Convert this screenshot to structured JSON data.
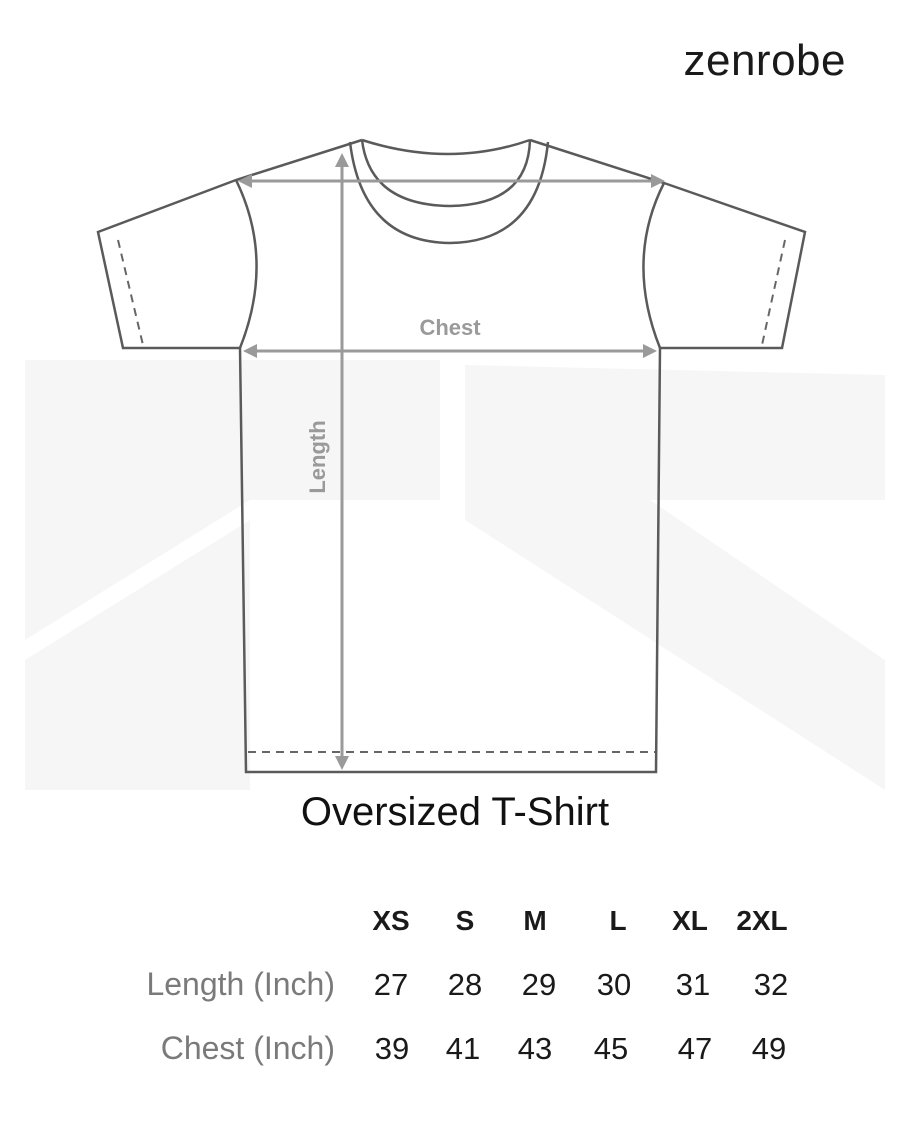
{
  "brand": "zenrobe",
  "diagram": {
    "chest_label": "Chest",
    "length_label": "Length"
  },
  "title": "Oversized T-Shirt",
  "size_table": {
    "sizes": [
      "XS",
      "S",
      "M",
      "L",
      "XL",
      "2XL"
    ],
    "rows": [
      {
        "label": "Length (Inch)",
        "values": [
          "27",
          "28",
          "29",
          "30",
          "31",
          "32"
        ]
      },
      {
        "label": "Chest (Inch)",
        "values": [
          "39",
          "41",
          "43",
          "45",
          "47",
          "49"
        ]
      }
    ]
  },
  "colors": {
    "outline": "#5a5a5a",
    "measure": "#9a9a9a",
    "label": "#7a7a7a"
  }
}
